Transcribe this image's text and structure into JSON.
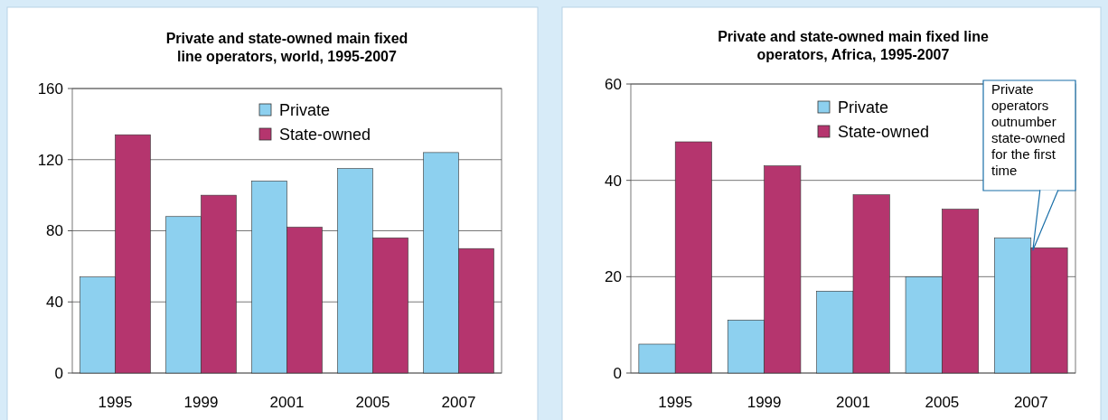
{
  "chart_data": [
    {
      "type": "bar",
      "title": "Private and state-owned main fixed\nline operators, world, 1995-2007",
      "categories": [
        "1995",
        "1999",
        "2001",
        "2005",
        "2007"
      ],
      "series": [
        {
          "name": "Private",
          "color": "#8dd0ef",
          "values": [
            54,
            88,
            108,
            115,
            124
          ]
        },
        {
          "name": "State-owned",
          "color": "#b5356e",
          "values": [
            134,
            100,
            82,
            76,
            70
          ]
        }
      ],
      "ylim": [
        0,
        160
      ],
      "yticks": [
        0,
        40,
        80,
        120,
        160
      ],
      "grid": "y",
      "legend": "top right"
    },
    {
      "type": "bar",
      "title": "Private and state-owned main fixed line\noperators, Africa, 1995-2007",
      "categories": [
        "1995",
        "1999",
        "2001",
        "2005",
        "2007"
      ],
      "series": [
        {
          "name": "Private",
          "color": "#8dd0ef",
          "values": [
            6,
            11,
            17,
            20,
            28
          ]
        },
        {
          "name": "State-owned",
          "color": "#b5356e",
          "values": [
            48,
            43,
            37,
            34,
            26
          ]
        }
      ],
      "ylim": [
        0,
        60
      ],
      "yticks": [
        0,
        20,
        40,
        60
      ],
      "grid": "y",
      "legend": "top right",
      "annotations": [
        {
          "text": "Private operators outnumber state-owned for the first time",
          "x": "2007",
          "y": 26
        }
      ]
    }
  ]
}
